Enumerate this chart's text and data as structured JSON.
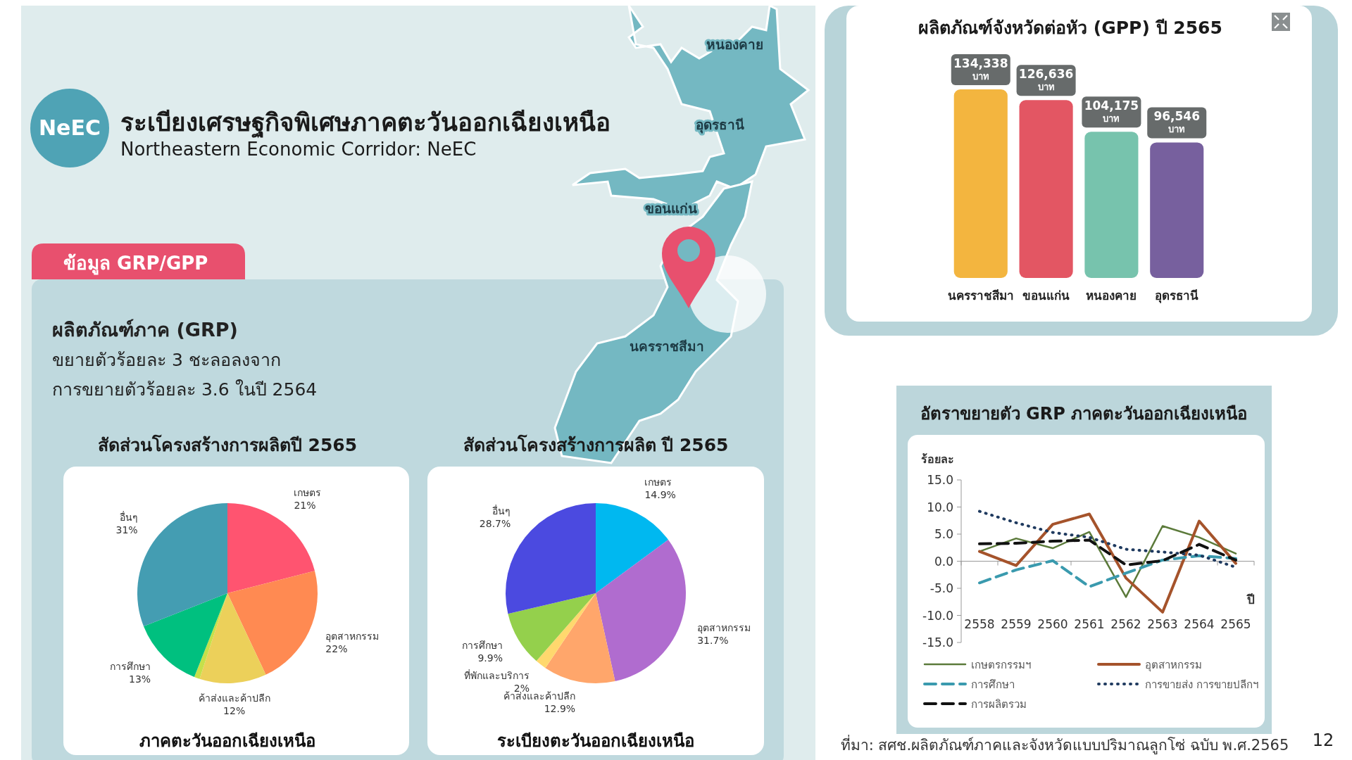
{
  "chart_data": [
    {
      "type": "other",
      "title": "ระเบียงเศรษฐกิจพิเศษภาคตะวันออกเฉียงเหนือ",
      "subtitle": "Northeastern Economic Corridor: NeEC",
      "annotations": [
        "NeEC",
        "ข้อมูล GRP/GPP",
        "ผลิตภัณฑ์ภาค (GRP)",
        "ขยายตัวร้อยละ 3 ชะลอลงจาก",
        "การขยายตัวร้อยละ 3.6 ในปี 2564",
        "หนองคาย",
        "อุดรธานี",
        "ขอนแก่น",
        "นครราชสีมา",
        "ที่มา: สศช.ผลิตภัณฑ์ภาคและจังหวัดแบบปริมาณลูกโซ่ ฉบับ พ.ศ.2565",
        "12"
      ]
    },
    {
      "type": "pie",
      "title": "สัดส่วนโครงสร้างการผลิตปี 2565",
      "subtitle": "ภาคตะวันออกเฉียงเหนือ",
      "categories": [
        "เกษตร",
        "อุตสาหกรรม",
        "ค้าส่งและค้าปลีก",
        null,
        "การศึกษา",
        "อื่นๆ"
      ],
      "values": [
        21,
        22,
        12,
        1,
        13,
        31
      ],
      "colors": [
        "#ff5470",
        "#ff8a52",
        "#ecd05a",
        "#c6e04a",
        "#00c07f",
        "#449db2"
      ],
      "value_labels": [
        "21%",
        "22%",
        "12%",
        null,
        "13%",
        "31%"
      ]
    },
    {
      "type": "pie",
      "title": "สัดส่วนโครงสร้างการผลิต ปี 2565",
      "subtitle": "ระเบียงตะวันออกเฉียงเหนือ",
      "categories": [
        "เกษตร",
        "อุตสาหกรรม",
        "ค้าส่งและค้าปลีก",
        "ที่พักและบริการ",
        "การศึกษา",
        "อื่นๆ"
      ],
      "values": [
        14.9,
        31.7,
        12.9,
        2,
        9.9,
        28.7
      ],
      "colors": [
        "#00b8f0",
        "#b06ccf",
        "#ffa66b",
        "#ffd86e",
        "#94d04c",
        "#4b4ae0"
      ],
      "value_labels": [
        "14.9%",
        "31.7%",
        "12.9%",
        "2%",
        "9.9%",
        "28.7%"
      ]
    },
    {
      "type": "bar",
      "title": "ผลิตภัณฑ์จังหวัดต่อหัว (GPP) ปี 2565",
      "categories": [
        "นครราชสีมา",
        "ขอนแก่น",
        "หนองคาย",
        "อุดรธานี"
      ],
      "values": [
        134338,
        126636,
        104175,
        96546
      ],
      "colors": [
        "#f3b53f",
        "#e35663",
        "#77c3ad",
        "#77609e"
      ],
      "value_labels": [
        "134,338 บาท",
        "126,636 บาท",
        "104,175 บาท",
        "96,546 บาท"
      ]
    },
    {
      "type": "line",
      "title": "อัตราขยายตัว GRP ภาคตะวันออกเฉียงเหนือ",
      "ylabel": "ร้อยละ",
      "xlabel": "ปี",
      "categories": [
        "2558",
        "2559",
        "2560",
        "2561",
        "2562",
        "2563",
        "2564",
        "2565"
      ],
      "ylim": [
        -15,
        15
      ],
      "yticks": [
        {
          "value": 15,
          "label": "15.0"
        },
        {
          "value": 10,
          "label": "10.0"
        },
        {
          "value": 5,
          "label": "5.0"
        },
        {
          "value": 0,
          "label": "0.0"
        },
        {
          "value": -5,
          "label": "-5.0"
        },
        {
          "value": -10,
          "label": "-10.0"
        },
        {
          "value": -15,
          "label": "-15.0"
        }
      ],
      "legend": "bottom",
      "series": [
        {
          "name": "เกษตรกรรมฯ",
          "color": "#5b7a3a",
          "line_style": "solid",
          "values": [
            1.8,
            4.2,
            2.4,
            5.4,
            -6.6,
            6.5,
            4.4,
            1.4
          ]
        },
        {
          "name": "อุตสาหกรรม",
          "color": "#a5532b",
          "line_style": "solid",
          "values": [
            1.8,
            -0.8,
            6.8,
            8.7,
            -3.1,
            -9.4,
            7.4,
            -0.4
          ]
        },
        {
          "name": "การศึกษา",
          "color": "#3a9aae",
          "line_style": "dashed",
          "values": [
            -4.0,
            -1.6,
            0.1,
            -4.7,
            -2.2,
            0.2,
            1.0,
            0.5
          ]
        },
        {
          "name": "การขายส่ง การขายปลีกฯ",
          "color": "#1f3a5f",
          "line_style": "dotted",
          "values": [
            9.2,
            7.1,
            5.3,
            4.4,
            2.2,
            1.7,
            1.1,
            -1.1
          ]
        },
        {
          "name": "การผลิตรวม",
          "color": "#111111",
          "line_style": "dashed",
          "values": [
            3.2,
            3.3,
            3.7,
            3.9,
            -0.7,
            0.1,
            3.1,
            0.2
          ]
        }
      ]
    }
  ]
}
